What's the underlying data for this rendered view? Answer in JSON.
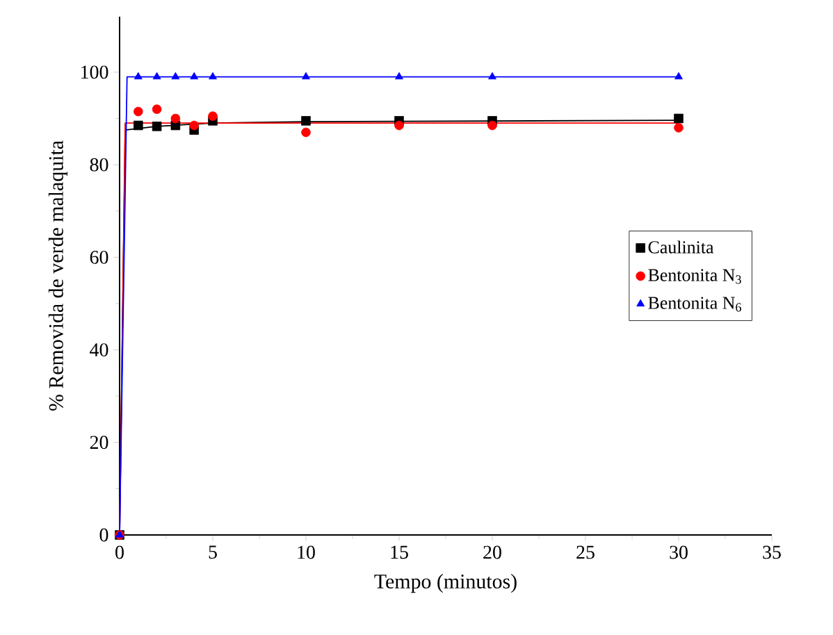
{
  "chart_data": {
    "type": "scatter",
    "xlabel": "Tempo (minutos)",
    "ylabel": "% Removida de verde malaquita",
    "xlim": [
      0,
      35
    ],
    "xticks": [
      0,
      5,
      10,
      15,
      20,
      25,
      30,
      35
    ],
    "ylim": [
      0,
      112
    ],
    "yticks": [
      0,
      20,
      40,
      60,
      80,
      100
    ],
    "legend": "right",
    "grid": false,
    "series": [
      {
        "name": "Caulinita",
        "color": "#000000",
        "marker": "square",
        "x": [
          0,
          1,
          2,
          3,
          4,
          5,
          10,
          15,
          20,
          30
        ],
        "values": [
          0,
          88.5,
          88.3,
          88.5,
          87.5,
          89.5,
          89.5,
          89.5,
          89.5,
          90
        ]
      },
      {
        "name": "Bentonita N$_{3}$",
        "color": "#ff0000",
        "marker": "circle",
        "x": [
          0,
          1,
          2,
          3,
          4,
          5,
          10,
          15,
          20,
          30
        ],
        "values": [
          0,
          91.5,
          92,
          90,
          88.5,
          90.5,
          87,
          88.5,
          88.5,
          88
        ]
      },
      {
        "name": "Bentonita N$_{6}$",
        "color": "#0000ff",
        "marker": "triangle",
        "x": [
          0,
          1,
          2,
          3,
          4,
          5,
          10,
          15,
          20,
          30
        ],
        "values": [
          0,
          99,
          99,
          99,
          99,
          99,
          99,
          99,
          99,
          99
        ]
      },
      {
        "type": "line",
        "color": "#000000",
        "marker": "none",
        "x": [
          0,
          0.3,
          2,
          5,
          10,
          30
        ],
        "values": [
          0,
          87.5,
          88.3,
          89,
          89.3,
          89.6
        ]
      },
      {
        "type": "line",
        "color": "#ff0000",
        "marker": "none",
        "x": [
          0,
          0.3,
          5,
          30
        ],
        "values": [
          0,
          89,
          89,
          89
        ]
      },
      {
        "type": "line",
        "color": "#0000ff",
        "marker": "none",
        "x": [
          0,
          0.4,
          5,
          30
        ],
        "values": [
          0,
          99,
          99,
          99
        ]
      }
    ]
  }
}
